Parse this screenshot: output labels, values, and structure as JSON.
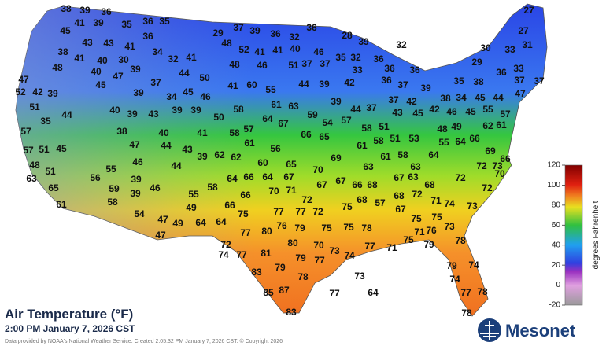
{
  "title": "Air Temperature (°F)",
  "timestamp": "2:00 PM January 7, 2026 CST",
  "credit": "Data provided by NOAA's National Weather Service. Created 2:05:32 PM January 7, 2026 CST. © Copyright 2026",
  "logo": "Mesonet",
  "colorbar": {
    "label": "degrees Fahrenheit",
    "range": [
      -20,
      120
    ],
    "ticks": [
      120,
      100,
      80,
      60,
      40,
      20,
      0,
      -20
    ]
  },
  "stations": [
    38,
    39,
    36,
    45,
    41,
    39,
    35,
    36,
    35,
    36,
    43,
    43,
    41,
    38,
    41,
    40,
    30,
    34,
    32,
    41,
    48,
    40,
    47,
    39,
    37,
    44,
    50,
    47,
    52,
    42,
    39,
    45,
    39,
    34,
    45,
    46,
    51,
    44,
    40,
    39,
    43,
    39,
    39,
    35,
    38,
    40,
    50,
    41,
    57,
    47,
    44,
    43,
    57,
    51,
    45,
    39,
    48,
    51,
    55,
    46,
    44,
    63,
    56,
    59,
    39,
    46,
    65,
    39,
    55,
    61,
    58,
    49,
    54,
    47,
    49,
    64,
    47,
    64,
    58,
    29,
    37,
    39,
    36,
    36,
    32,
    28,
    39,
    48,
    52,
    41,
    41,
    40,
    46,
    48,
    46,
    51,
    37,
    37,
    35,
    32,
    36,
    32,
    60,
    41,
    55,
    44,
    39,
    42,
    33,
    36,
    36,
    36,
    37,
    61,
    63,
    58,
    39,
    44,
    37,
    37,
    42,
    39,
    64,
    67,
    59,
    54,
    57,
    58,
    51,
    43,
    45,
    27,
    27,
    30,
    33,
    31,
    29,
    36,
    33,
    37,
    37,
    35,
    38,
    47,
    38,
    34,
    45,
    44,
    42,
    46,
    45,
    55,
    57,
    48,
    49,
    62,
    61,
    55,
    64,
    66,
    69,
    66,
    72,
    73,
    70,
    72,
    72,
    68,
    57,
    58,
    61,
    56,
    66,
    65,
    61,
    58,
    53,
    51,
    58,
    69,
    60,
    65,
    62,
    62,
    70,
    63,
    61,
    63,
    64,
    64,
    66,
    64,
    67,
    67,
    67,
    66,
    68,
    67,
    63,
    66,
    70,
    71,
    72,
    66,
    68,
    57,
    68,
    72,
    67,
    71,
    74,
    73,
    75,
    77,
    77,
    72,
    75,
    75,
    75,
    71,
    75,
    78,
    73,
    76,
    72,
    77,
    80,
    76,
    79,
    75,
    80,
    70,
    73,
    74,
    77,
    71,
    75,
    79,
    78,
    74,
    77,
    81,
    79,
    77,
    83,
    79,
    78,
    73,
    79,
    74,
    74,
    85,
    87,
    77,
    64,
    77,
    78,
    83,
    78
  ]
}
